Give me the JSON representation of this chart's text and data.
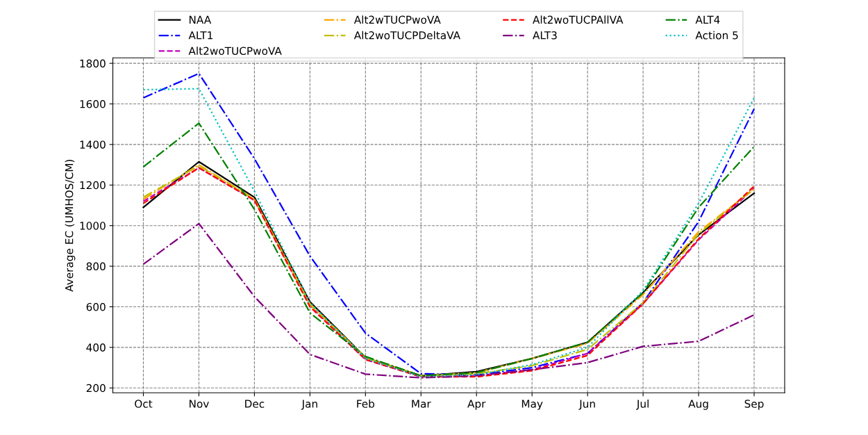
{
  "chart_data": {
    "type": "line",
    "ylabel": "Average EC (UMHOS/CM)",
    "categories": [
      "Oct",
      "Nov",
      "Dec",
      "Jan",
      "Feb",
      "Mar",
      "Apr",
      "May",
      "Jun",
      "Jul",
      "Aug",
      "Sep"
    ],
    "series": [
      {
        "name": "NAA",
        "color": "#000000",
        "line_style": "solid",
        "values": [
          1090,
          1315,
          1140,
          625,
          350,
          260,
          280,
          345,
          425,
          670,
          955,
          1160
        ]
      },
      {
        "name": "ALT1",
        "color": "#0000ff",
        "line_style": "dashdot",
        "values": [
          1630,
          1750,
          1330,
          850,
          470,
          270,
          265,
          300,
          370,
          620,
          1020,
          1575
        ]
      },
      {
        "name": "Alt2woTUCPwoVA",
        "color": "#bf00bf",
        "line_style": "dashed",
        "values": [
          1120,
          1285,
          1125,
          605,
          340,
          255,
          260,
          290,
          370,
          615,
          930,
          1185
        ]
      },
      {
        "name": "Alt2wTUCPwoVA",
        "color": "#ffa500",
        "line_style": "dashdot",
        "values": [
          1130,
          1300,
          1130,
          615,
          350,
          260,
          275,
          345,
          420,
          660,
          970,
          1180
        ]
      },
      {
        "name": "Alt2woTUCPDeltaVA",
        "color": "#bfbf00",
        "line_style": "dashdot",
        "values": [
          1140,
          1295,
          1130,
          610,
          350,
          260,
          270,
          310,
          390,
          620,
          960,
          1185
        ]
      },
      {
        "name": "Alt2woTUCPAllVA",
        "color": "#ff0000",
        "line_style": "dashed",
        "values": [
          1110,
          1285,
          1125,
          600,
          340,
          255,
          255,
          285,
          360,
          615,
          935,
          1195
        ]
      },
      {
        "name": "ALT3",
        "color": "#800080",
        "line_style": "dashdot",
        "values": [
          810,
          1010,
          650,
          365,
          268,
          250,
          260,
          290,
          325,
          405,
          430,
          560
        ]
      },
      {
        "name": "ALT4",
        "color": "#008000",
        "line_style": "dashdot",
        "values": [
          1290,
          1505,
          1080,
          570,
          355,
          260,
          275,
          345,
          425,
          670,
          1090,
          1390
        ]
      },
      {
        "name": "Action 5",
        "color": "#00bfbf",
        "line_style": "dotted",
        "values": [
          1670,
          1675,
          1170,
          620,
          345,
          255,
          265,
          315,
          400,
          680,
          1110,
          1630
        ]
      }
    ],
    "ylim": [
      176,
      1827
    ],
    "yticks": [
      200,
      400,
      600,
      800,
      1000,
      1200,
      1400,
      1600,
      1800
    ],
    "grid": true,
    "legend": "top"
  }
}
